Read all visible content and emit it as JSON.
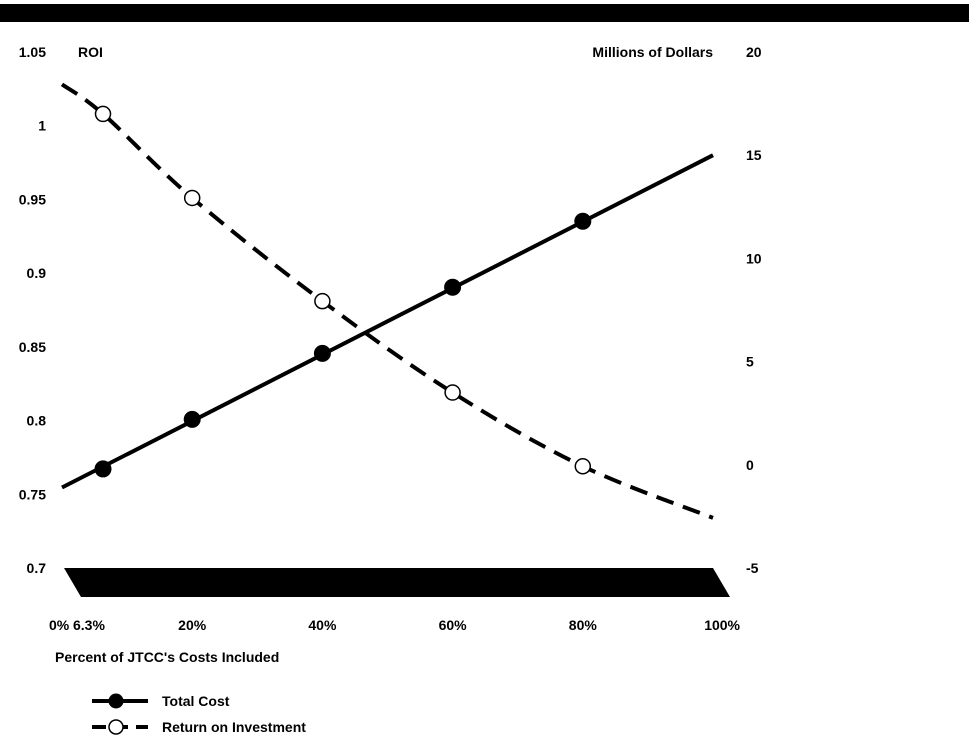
{
  "chart_data": {
    "type": "line",
    "title": "",
    "xlabel": "Percent of JTCC's Costs Included",
    "y_left_label": "ROI",
    "y_right_label": "Millions of Dollars",
    "x_ticks": [
      {
        "value": 0,
        "label": "0%"
      },
      {
        "value": 6.3,
        "label": "6.3%"
      },
      {
        "value": 20,
        "label": "20%"
      },
      {
        "value": 40,
        "label": "40%"
      },
      {
        "value": 60,
        "label": "60%"
      },
      {
        "value": 80,
        "label": "80%"
      },
      {
        "value": 100,
        "label": "100%"
      }
    ],
    "y_left_ticks": [
      "1.05",
      "1",
      "0.95",
      "0.9",
      "0.85",
      "0.8",
      "0.75",
      "0.7"
    ],
    "y_right_ticks": [
      "20",
      "15",
      "10",
      "5",
      "0",
      "-5"
    ],
    "xlim": [
      0,
      100
    ],
    "ylim_left": [
      0.7,
      1.05
    ],
    "ylim_right": [
      -5,
      20
    ],
    "series": [
      {
        "name": "Total Cost",
        "axis": "right",
        "style": "solid",
        "marker": "filled-circle",
        "line": {
          "x": [
            0,
            100
          ],
          "y": [
            -1.1,
            15.0
          ]
        },
        "points": {
          "x": [
            6.3,
            20,
            40,
            60,
            80
          ],
          "y": [
            -0.2,
            2.2,
            5.4,
            8.6,
            11.8
          ]
        }
      },
      {
        "name": "Return on Investment",
        "axis": "left",
        "style": "dashed",
        "marker": "open-circle",
        "line": {
          "x": [
            0,
            6.3,
            20,
            40,
            60,
            80,
            100
          ],
          "y": [
            1.028,
            1.008,
            0.951,
            0.881,
            0.819,
            0.769,
            0.734
          ]
        },
        "points": {
          "x": [
            6.3,
            20,
            40,
            60,
            80
          ],
          "y": [
            1.008,
            0.951,
            0.881,
            0.819,
            0.769
          ]
        }
      }
    ],
    "legend_position": "bottom-left",
    "grid": false,
    "colors": {
      "line": "#000000",
      "background": "#ffffff"
    }
  }
}
